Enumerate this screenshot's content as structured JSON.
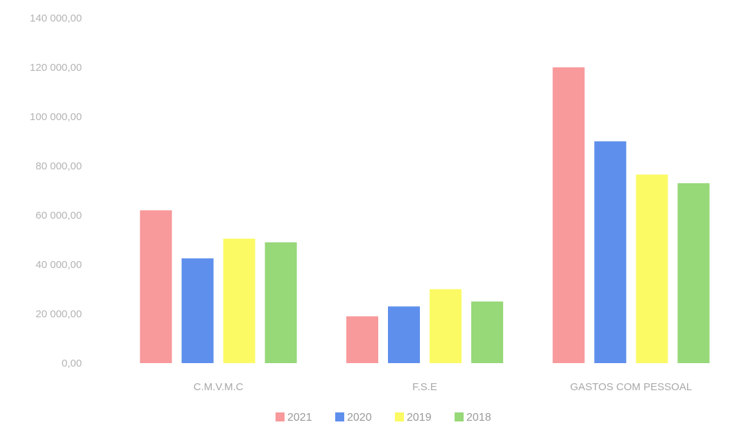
{
  "chart_data": {
    "type": "bar",
    "title": "",
    "xlabel": "",
    "ylabel": "",
    "categories": [
      "C.M.V.M.C",
      "F.S.E",
      "GASTOS COM PESSOAL"
    ],
    "series": [
      {
        "name": "2021",
        "color": "#f8999b",
        "values": [
          62000,
          19000,
          120000
        ]
      },
      {
        "name": "2020",
        "color": "#5e8fec",
        "values": [
          42500,
          23000,
          90000
        ]
      },
      {
        "name": "2019",
        "color": "#fbfa64",
        "values": [
          50500,
          30000,
          76500
        ]
      },
      {
        "name": "2018",
        "color": "#97d879",
        "values": [
          49000,
          25000,
          73000
        ]
      }
    ],
    "ylim": [
      0,
      140000
    ],
    "yticks": [
      0,
      20000,
      40000,
      60000,
      80000,
      100000,
      120000,
      140000
    ],
    "ytick_labels": [
      "0,00",
      "20 000,00",
      "40 000,00",
      "60 000,00",
      "80 000,00",
      "100 000,00",
      "120 000,00",
      "140 000,00"
    ],
    "grid": false,
    "legend_position": "bottom"
  }
}
